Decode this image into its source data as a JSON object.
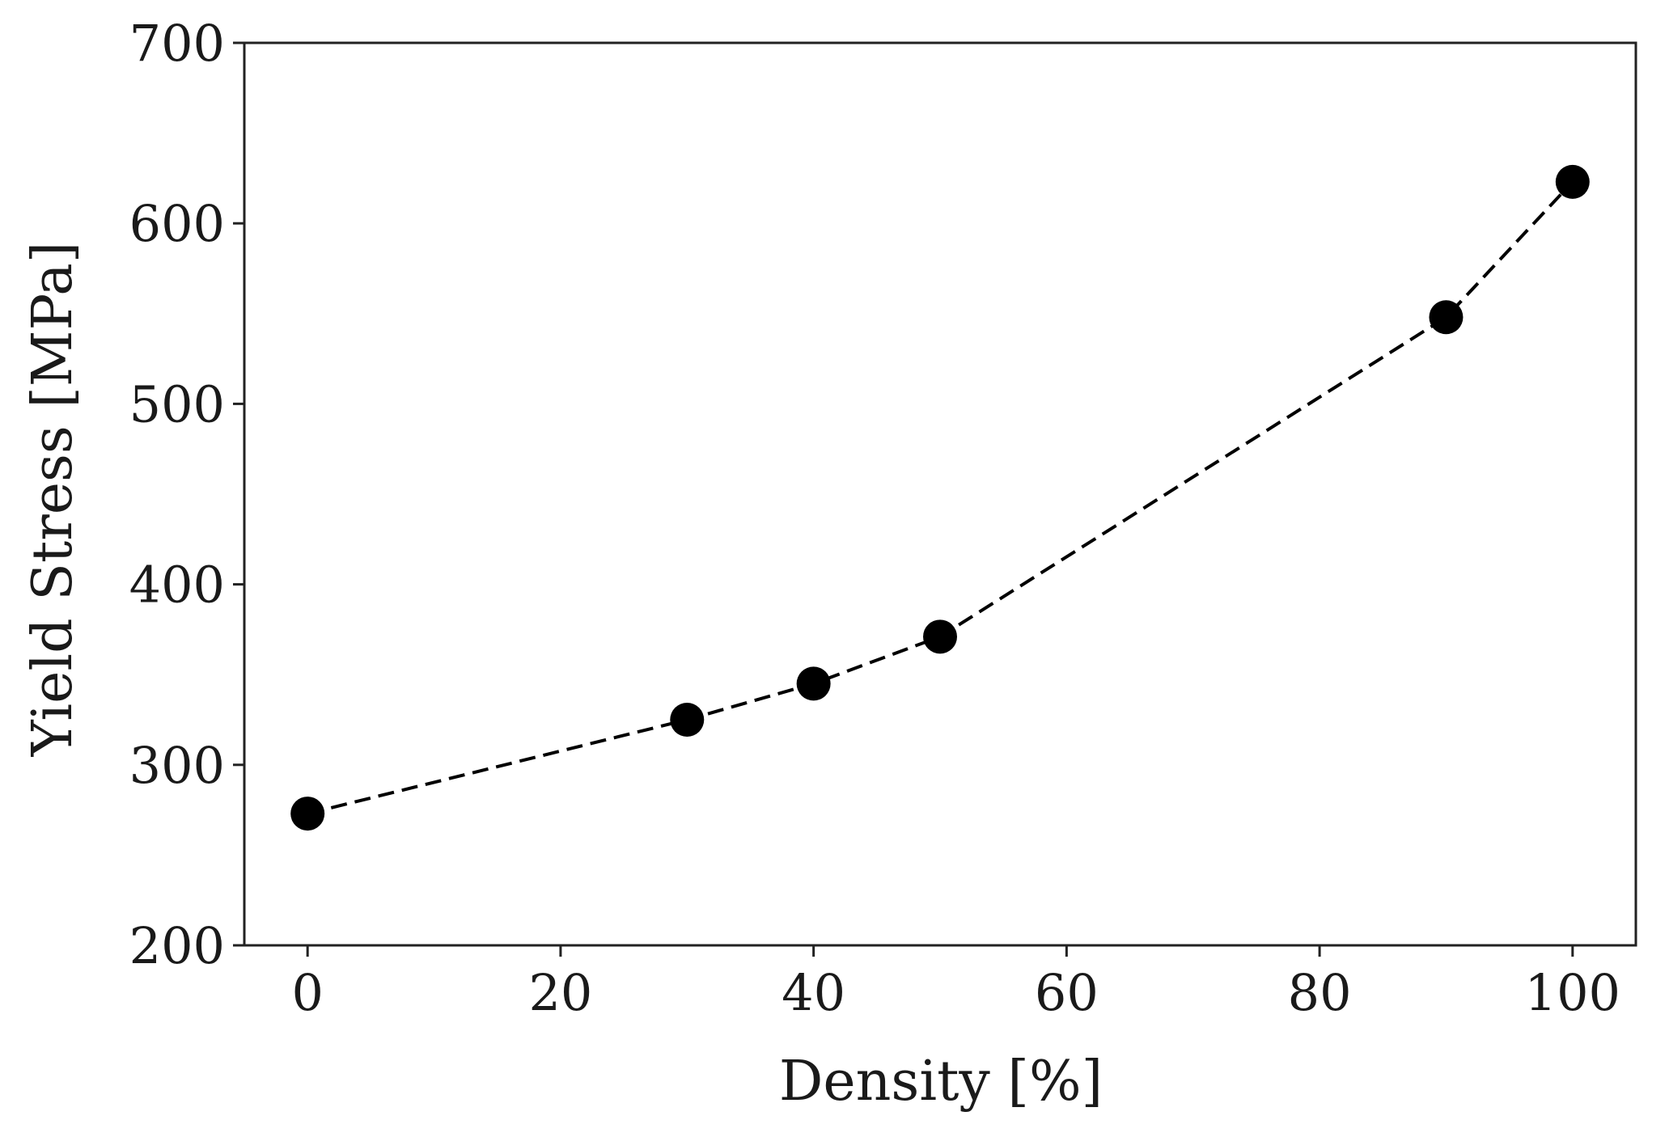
{
  "chart_data": {
    "type": "line",
    "title": "",
    "xlabel": "Density [%]",
    "ylabel": "Yield Stress [MPa]",
    "xlim": [
      -5,
      105
    ],
    "ylim": [
      200,
      700
    ],
    "xticks": [
      0,
      20,
      40,
      60,
      80,
      100
    ],
    "yticks": [
      200,
      300,
      400,
      500,
      600,
      700
    ],
    "grid": false,
    "legend": "none",
    "series": [
      {
        "x": [
          0,
          30,
          40,
          50,
          90,
          100
        ],
        "y": [
          273,
          325,
          345,
          371,
          548,
          623
        ],
        "line_style": "dashed",
        "marker": "circle",
        "color": "#000000"
      }
    ]
  }
}
